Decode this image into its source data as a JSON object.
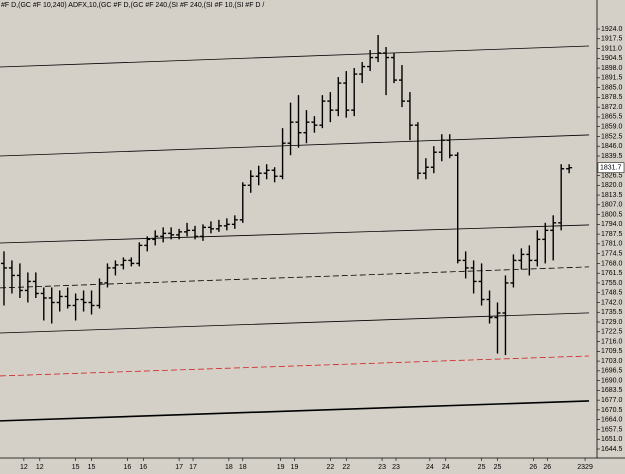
{
  "chart_data": {
    "type": "ohlc",
    "header": "#F D,(GC #F 10,240) ADFX,10,(GC #F D,(GC #F 240,(SI #F 240,(SI #F 10,(SI #F D /",
    "bar_color": "#000000",
    "x": [
      1,
      3,
      5,
      7,
      9,
      11,
      13,
      15,
      17,
      19,
      21,
      23,
      25,
      27,
      29,
      31,
      33,
      35,
      37,
      39,
      41,
      43,
      45,
      47,
      49,
      51,
      53,
      55,
      57,
      59,
      61,
      63,
      65,
      67,
      69,
      71,
      73,
      75,
      77,
      79,
      81,
      83,
      85,
      87,
      89,
      91,
      93,
      95,
      97,
      99,
      101,
      103,
      105,
      107,
      109,
      111,
      113,
      115,
      117,
      119,
      121,
      123,
      125,
      127,
      129,
      131,
      133,
      135,
      137,
      139,
      141,
      143
    ],
    "open": [
      1768,
      1765,
      1760,
      1750,
      1756,
      1748,
      1745,
      1742,
      1746,
      1740,
      1744,
      1742,
      1740,
      1755,
      1765,
      1767,
      1770,
      1768,
      1780,
      1784,
      1786,
      1788,
      1787,
      1789,
      1790,
      1786,
      1792,
      1791,
      1793,
      1794,
      1797,
      1820,
      1826,
      1828,
      1830,
      1826,
      1848,
      1862,
      1855,
      1862,
      1860,
      1876,
      1870,
      1888,
      1870,
      1894,
      1899,
      1905,
      1908,
      1905,
      1890,
      1876,
      1860,
      1828,
      1832,
      1842,
      1850,
      1840,
      1770,
      1765,
      1756,
      1744,
      1732,
      1735,
      1755,
      1770,
      1774,
      1770,
      1784,
      1790,
      1795,
      1831
    ],
    "high": [
      1776,
      1770,
      1768,
      1762,
      1762,
      1752,
      1752,
      1750,
      1752,
      1748,
      1750,
      1750,
      1758,
      1768,
      1770,
      1772,
      1772,
      1782,
      1786,
      1790,
      1792,
      1792,
      1791,
      1795,
      1793,
      1794,
      1796,
      1797,
      1798,
      1800,
      1822,
      1830,
      1833,
      1834,
      1832,
      1858,
      1875,
      1880,
      1870,
      1866,
      1880,
      1882,
      1892,
      1896,
      1898,
      1902,
      1910,
      1920,
      1912,
      1908,
      1900,
      1882,
      1862,
      1838,
      1846,
      1854,
      1854,
      1842,
      1776,
      1770,
      1768,
      1750,
      1742,
      1760,
      1774,
      1778,
      1780,
      1790,
      1795,
      1800,
      1834,
      1834
    ],
    "low": [
      1740,
      1748,
      1745,
      1742,
      1745,
      1730,
      1728,
      1736,
      1738,
      1730,
      1736,
      1734,
      1738,
      1752,
      1760,
      1764,
      1766,
      1766,
      1776,
      1780,
      1782,
      1784,
      1784,
      1786,
      1784,
      1783,
      1788,
      1789,
      1790,
      1791,
      1795,
      1815,
      1820,
      1824,
      1822,
      1824,
      1840,
      1845,
      1848,
      1855,
      1858,
      1862,
      1866,
      1865,
      1866,
      1888,
      1896,
      1902,
      1880,
      1888,
      1872,
      1850,
      1824,
      1824,
      1828,
      1836,
      1838,
      1768,
      1758,
      1748,
      1740,
      1728,
      1708,
      1707,
      1752,
      1764,
      1760,
      1766,
      1768,
      1770,
      1790,
      1828
    ],
    "close": [
      1765,
      1760,
      1750,
      1756,
      1748,
      1745,
      1742,
      1746,
      1740,
      1744,
      1742,
      1740,
      1755,
      1765,
      1767,
      1770,
      1768,
      1780,
      1784,
      1786,
      1788,
      1787,
      1789,
      1790,
      1786,
      1792,
      1791,
      1793,
      1794,
      1797,
      1820,
      1826,
      1828,
      1830,
      1826,
      1848,
      1862,
      1855,
      1862,
      1860,
      1876,
      1870,
      1888,
      1870,
      1894,
      1899,
      1905,
      1908,
      1905,
      1890,
      1876,
      1860,
      1828,
      1832,
      1842,
      1850,
      1840,
      1770,
      1765,
      1756,
      1744,
      1732,
      1735,
      1755,
      1770,
      1774,
      1770,
      1784,
      1790,
      1795,
      1831,
      1831.7
    ],
    "last_price": 1831.7,
    "lines": [
      {
        "x": [
          0,
          148
        ],
        "y": [
          1898.7,
          1912.7
        ],
        "color": "#000000",
        "dash": false,
        "width": 0.8
      },
      {
        "x": [
          0,
          148
        ],
        "y": [
          1839.5,
          1853.5
        ],
        "color": "#000000",
        "dash": false,
        "width": 0.8
      },
      {
        "x": [
          0,
          148
        ],
        "y": [
          1781.6,
          1793.6
        ],
        "color": "#000000",
        "dash": false,
        "width": 0.8
      },
      {
        "x": [
          0,
          148
        ],
        "y": [
          1751.7,
          1765.7
        ],
        "color": "#000000",
        "dash": true,
        "width": 0.8
      },
      {
        "x": [
          0,
          148
        ],
        "y": [
          1721.7,
          1735.1
        ],
        "color": "#000000",
        "dash": false,
        "width": 0.8
      },
      {
        "x": [
          0,
          148
        ],
        "y": [
          1693.1,
          1706.4
        ],
        "color": "#d02020",
        "dash": true,
        "width": 0.8
      },
      {
        "x": [
          0,
          148
        ],
        "y": [
          1663.2,
          1676.5
        ],
        "color": "#000000",
        "dash": false,
        "width": 1.6
      }
    ],
    "xlim": [
      0,
      150
    ],
    "ylim": [
      1638.5,
      1943.3
    ],
    "xticks": [
      {
        "value": 6,
        "label": "12"
      },
      {
        "value": 10,
        "label": "12"
      },
      {
        "value": 19,
        "label": "15"
      },
      {
        "value": 23,
        "label": "15"
      },
      {
        "value": 32,
        "label": "16"
      },
      {
        "value": 36,
        "label": "16"
      },
      {
        "value": 45,
        "label": "17"
      },
      {
        "value": 48.5,
        "label": "17"
      },
      {
        "value": 57.5,
        "label": "18"
      },
      {
        "value": 61,
        "label": "18"
      },
      {
        "value": 70.5,
        "label": "19"
      },
      {
        "value": 74,
        "label": "19"
      },
      {
        "value": 83,
        "label": "22"
      },
      {
        "value": 87,
        "label": "22"
      },
      {
        "value": 96,
        "label": "23"
      },
      {
        "value": 99.5,
        "label": "23"
      },
      {
        "value": 108,
        "label": "24"
      },
      {
        "value": 112,
        "label": "24"
      },
      {
        "value": 121,
        "label": "25"
      },
      {
        "value": 125,
        "label": "25"
      },
      {
        "value": 134,
        "label": "26"
      },
      {
        "value": 137.5,
        "label": "26"
      },
      {
        "value": 147,
        "label": "2329"
      }
    ],
    "yticks": [
      {
        "value": 1924,
        "label": "1924.0"
      },
      1917.5,
      {
        "value": 1911,
        "label": "1911.0"
      },
      1904.5,
      {
        "value": 1898,
        "label": "1898.0"
      },
      1891.5,
      {
        "value": 1885,
        "label": "1885.0"
      },
      1878.5,
      {
        "value": 1872,
        "label": "1872.0"
      },
      1865.5,
      {
        "value": 1859,
        "label": "1859.0"
      },
      1852.5,
      {
        "value": 1846,
        "label": "1846.0"
      },
      1839.5,
      1826.5,
      {
        "value": 1820,
        "label": "1820.0"
      },
      1813.5,
      {
        "value": 1807,
        "label": "1807.0"
      },
      1800.5,
      {
        "value": 1794,
        "label": "1794.0"
      },
      1787.5,
      {
        "value": 1781,
        "label": "1781.0"
      },
      1774.5,
      {
        "value": 1768,
        "label": "1768.0"
      },
      1761.5,
      {
        "value": 1755,
        "label": "1755.0"
      },
      1748.5,
      {
        "value": 1742,
        "label": "1742.0"
      },
      1735.5,
      {
        "value": 1729,
        "label": "1729.0"
      },
      1722.5,
      {
        "value": 1716,
        "label": "1716.0"
      },
      1709.5,
      {
        "value": 1703,
        "label": "1703.0"
      },
      1696.5,
      {
        "value": 1690,
        "label": "1690.0"
      },
      1683.5,
      {
        "value": 1677,
        "label": "1677.0"
      },
      1670.5,
      {
        "value": 1664,
        "label": "1664.0"
      },
      1657.5,
      {
        "value": 1651,
        "label": "1651.0"
      },
      1644.5
    ]
  }
}
